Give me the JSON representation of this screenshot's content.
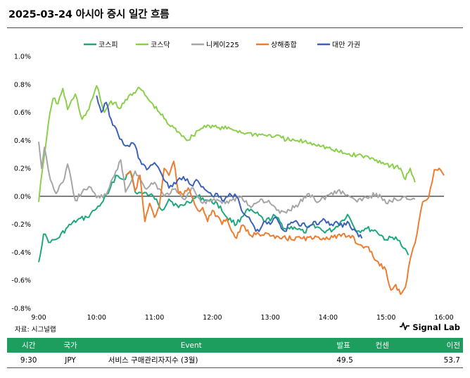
{
  "header": {
    "title": "2025-03-24 아시아 증시 일간 흐름"
  },
  "footer": {
    "source": "자료: 시그널랩",
    "brand": "Signal Lab",
    "brand_icon": "signal-pulse-icon"
  },
  "colors": {
    "kospi": "#1fa87e",
    "kosdaq": "#8ccf4d",
    "nikkei": "#a6a6a6",
    "shanghai": "#ed7d31",
    "taiwan": "#3a62b8",
    "table_header_bg": "#1e9e5e"
  },
  "chart_data": {
    "type": "line",
    "title": "",
    "xlabel": "",
    "ylabel": "",
    "x_ticks": [
      "9:00",
      "10:00",
      "11:00",
      "12:00",
      "13:00",
      "14:00",
      "15:00",
      "16:00"
    ],
    "y_ticks": [
      "1.0%",
      "0.8%",
      "0.6%",
      "0.4%",
      "0.2%",
      "0.0%",
      "-0.2%",
      "-0.4%",
      "-0.6%",
      "-0.8%"
    ],
    "xlim": [
      "9:00",
      "16:00"
    ],
    "ylim": [
      -0.8,
      1.0
    ],
    "grid": false,
    "legend_position": "top",
    "series": [
      {
        "name": "코스피",
        "color_key": "kospi",
        "points": [
          [
            "9:00",
            -0.47
          ],
          [
            "9:05",
            -0.27
          ],
          [
            "9:12",
            -0.33
          ],
          [
            "9:20",
            -0.3
          ],
          [
            "9:30",
            -0.22
          ],
          [
            "9:40",
            -0.17
          ],
          [
            "9:50",
            -0.15
          ],
          [
            "9:58",
            -0.1
          ],
          [
            "10:05",
            -0.05
          ],
          [
            "10:12",
            0.02
          ],
          [
            "10:20",
            0.15
          ],
          [
            "10:28",
            0.12
          ],
          [
            "10:35",
            0.18
          ],
          [
            "10:40",
            0.03
          ],
          [
            "10:48",
            0.02
          ],
          [
            "10:55",
            0.01
          ],
          [
            "11:02",
            -0.02
          ],
          [
            "11:08",
            -0.1
          ],
          [
            "11:15",
            -0.02
          ],
          [
            "11:25",
            -0.08
          ],
          [
            "11:35",
            -0.04
          ],
          [
            "11:45",
            0.0
          ],
          [
            "11:55",
            -0.03
          ],
          [
            "12:05",
            -0.05
          ],
          [
            "12:15",
            -0.15
          ],
          [
            "12:25",
            -0.2
          ],
          [
            "12:35",
            -0.1
          ],
          [
            "12:45",
            -0.12
          ],
          [
            "12:55",
            -0.18
          ],
          [
            "13:05",
            -0.14
          ],
          [
            "13:15",
            -0.23
          ],
          [
            "13:25",
            -0.22
          ],
          [
            "13:35",
            -0.26
          ],
          [
            "13:45",
            -0.2
          ],
          [
            "13:55",
            -0.25
          ],
          [
            "14:05",
            -0.24
          ],
          [
            "14:15",
            -0.17
          ],
          [
            "14:20",
            -0.13
          ],
          [
            "14:30",
            -0.25
          ],
          [
            "14:40",
            -0.23
          ],
          [
            "14:50",
            -0.25
          ],
          [
            "15:00",
            -0.31
          ],
          [
            "15:10",
            -0.29
          ],
          [
            "15:18",
            -0.37
          ],
          [
            "15:23",
            -0.42
          ]
        ]
      },
      {
        "name": "코스닥",
        "color_key": "kosdaq",
        "points": [
          [
            "9:00",
            -0.04
          ],
          [
            "9:04",
            0.2
          ],
          [
            "9:10",
            0.52
          ],
          [
            "9:15",
            0.7
          ],
          [
            "9:20",
            0.66
          ],
          [
            "9:25",
            0.77
          ],
          [
            "9:30",
            0.62
          ],
          [
            "9:38",
            0.73
          ],
          [
            "9:45",
            0.55
          ],
          [
            "9:52",
            0.62
          ],
          [
            "10:00",
            0.79
          ],
          [
            "10:08",
            0.6
          ],
          [
            "10:15",
            0.68
          ],
          [
            "10:25",
            0.63
          ],
          [
            "10:35",
            0.73
          ],
          [
            "10:45",
            0.77
          ],
          [
            "10:55",
            0.68
          ],
          [
            "11:05",
            0.6
          ],
          [
            "11:15",
            0.51
          ],
          [
            "11:25",
            0.46
          ],
          [
            "11:35",
            0.4
          ],
          [
            "11:45",
            0.47
          ],
          [
            "11:55",
            0.51
          ],
          [
            "12:05",
            0.49
          ],
          [
            "12:20",
            0.48
          ],
          [
            "12:35",
            0.45
          ],
          [
            "12:50",
            0.44
          ],
          [
            "13:05",
            0.43
          ],
          [
            "13:20",
            0.4
          ],
          [
            "13:35",
            0.39
          ],
          [
            "13:50",
            0.37
          ],
          [
            "14:05",
            0.33
          ],
          [
            "14:20",
            0.3
          ],
          [
            "14:35",
            0.29
          ],
          [
            "14:50",
            0.26
          ],
          [
            "15:05",
            0.22
          ],
          [
            "15:15",
            0.2
          ],
          [
            "15:20",
            0.12
          ],
          [
            "15:25",
            0.2
          ],
          [
            "15:30",
            0.1
          ]
        ]
      },
      {
        "name": "니케이225",
        "color_key": "nikkei",
        "points": [
          [
            "9:00",
            0.39
          ],
          [
            "9:03",
            0.2
          ],
          [
            "9:06",
            0.35
          ],
          [
            "9:12",
            0.12
          ],
          [
            "9:18",
            0.02
          ],
          [
            "9:25",
            0.1
          ],
          [
            "9:30",
            0.23
          ],
          [
            "9:38",
            -0.03
          ],
          [
            "9:45",
            0.03
          ],
          [
            "9:52",
            0.07
          ],
          [
            "10:00",
            -0.01
          ],
          [
            "10:10",
            0.01
          ],
          [
            "10:20",
            0.18
          ],
          [
            "10:25",
            0.26
          ],
          [
            "10:30",
            0.03
          ],
          [
            "10:40",
            0.18
          ],
          [
            "10:50",
            0.06
          ],
          [
            "11:00",
            0.1
          ],
          [
            "11:10",
            0.0
          ],
          [
            "11:20",
            0.05
          ],
          [
            "11:30",
            -0.02
          ],
          [
            "11:40",
            0.06
          ],
          [
            "11:50",
            -0.05
          ],
          [
            "12:00",
            -0.03
          ],
          [
            "12:10",
            -0.05
          ],
          [
            "12:20",
            -0.03
          ],
          [
            "12:30",
            0.0
          ],
          [
            "12:40",
            -0.08
          ],
          [
            "12:50",
            -0.02
          ],
          [
            "13:00",
            -0.05
          ],
          [
            "13:10",
            -0.12
          ],
          [
            "13:20",
            -0.1
          ],
          [
            "13:30",
            -0.05
          ],
          [
            "13:40",
            0.02
          ],
          [
            "13:50",
            -0.04
          ],
          [
            "14:00",
            0.01
          ],
          [
            "14:10",
            0.04
          ],
          [
            "14:20",
            0.01
          ],
          [
            "14:30",
            -0.04
          ],
          [
            "14:40",
            -0.01
          ],
          [
            "14:50",
            0.02
          ],
          [
            "15:00",
            -0.05
          ],
          [
            "15:10",
            -0.02
          ],
          [
            "15:20",
            0.0
          ],
          [
            "15:30",
            -0.02
          ]
        ]
      },
      {
        "name": "상해종합",
        "color_key": "shanghai",
        "points": [
          [
            "10:30",
            0.15
          ],
          [
            "10:35",
            0.18
          ],
          [
            "10:40",
            0.04
          ],
          [
            "10:45",
            0.15
          ],
          [
            "10:50",
            -0.18
          ],
          [
            "10:55",
            -0.05
          ],
          [
            "11:00",
            -0.15
          ],
          [
            "11:05",
            -0.07
          ],
          [
            "11:10",
            0.2
          ],
          [
            "11:15",
            0.15
          ],
          [
            "11:20",
            0.25
          ],
          [
            "11:25",
            0.02
          ],
          [
            "11:30",
            0.01
          ],
          [
            "11:35",
            0.06
          ],
          [
            "11:40",
            -0.02
          ],
          [
            "11:45",
            -0.1
          ],
          [
            "11:50",
            -0.08
          ],
          [
            "11:55",
            -0.18
          ],
          [
            "12:00",
            -0.1
          ],
          [
            "12:05",
            -0.14
          ],
          [
            "12:10",
            -0.2
          ],
          [
            "12:15",
            -0.16
          ],
          [
            "12:20",
            -0.25
          ],
          [
            "12:25",
            -0.3
          ],
          [
            "12:30",
            -0.21
          ],
          [
            "12:40",
            -0.28
          ],
          [
            "12:55",
            -0.26
          ],
          [
            "13:05",
            -0.3
          ],
          [
            "13:45",
            -0.3
          ],
          [
            "14:25",
            -0.28
          ],
          [
            "14:30",
            -0.34
          ],
          [
            "14:40",
            -0.36
          ],
          [
            "14:50",
            -0.46
          ],
          [
            "15:00",
            -0.53
          ],
          [
            "15:05",
            -0.67
          ],
          [
            "15:10",
            -0.63
          ],
          [
            "15:15",
            -0.7
          ],
          [
            "15:20",
            -0.65
          ],
          [
            "15:25",
            -0.45
          ],
          [
            "15:28",
            -0.37
          ],
          [
            "15:32",
            -0.27
          ],
          [
            "15:38",
            -0.04
          ],
          [
            "15:44",
            -0.01
          ],
          [
            "15:50",
            0.19
          ],
          [
            "15:55",
            0.2
          ],
          [
            "16:00",
            0.15
          ]
        ]
      },
      {
        "name": "대만 가권",
        "color_key": "taiwan",
        "points": [
          [
            "10:00",
            0.72
          ],
          [
            "10:05",
            0.6
          ],
          [
            "10:10",
            0.67
          ],
          [
            "10:15",
            0.55
          ],
          [
            "10:22",
            0.45
          ],
          [
            "10:30",
            0.36
          ],
          [
            "10:38",
            0.38
          ],
          [
            "10:45",
            0.26
          ],
          [
            "10:52",
            0.19
          ],
          [
            "11:00",
            0.24
          ],
          [
            "11:08",
            0.15
          ],
          [
            "11:15",
            0.06
          ],
          [
            "11:22",
            0.09
          ],
          [
            "11:30",
            0.14
          ],
          [
            "11:38",
            0.08
          ],
          [
            "11:45",
            0.11
          ],
          [
            "11:52",
            0.05
          ],
          [
            "12:00",
            0.0
          ],
          [
            "12:05",
            0.02
          ],
          [
            "12:10",
            -0.03
          ],
          [
            "12:18",
            0.02
          ],
          [
            "12:25",
            0.0
          ],
          [
            "12:32",
            -0.12
          ],
          [
            "12:40",
            -0.18
          ],
          [
            "12:45",
            -0.25
          ],
          [
            "12:50",
            -0.23
          ],
          [
            "12:55",
            -0.18
          ],
          [
            "13:00",
            -0.2
          ],
          [
            "13:05",
            -0.15
          ],
          [
            "13:10",
            -0.2
          ],
          [
            "13:15",
            -0.25
          ],
          [
            "13:20",
            -0.2
          ],
          [
            "13:25",
            -0.18
          ],
          [
            "13:30",
            -0.21
          ],
          [
            "13:35",
            -0.19
          ],
          [
            "13:40",
            -0.22
          ],
          [
            "13:45",
            -0.18
          ],
          [
            "13:50",
            -0.2
          ],
          [
            "13:55",
            -0.16
          ],
          [
            "14:00",
            -0.18
          ],
          [
            "14:05",
            -0.21
          ],
          [
            "14:10",
            -0.19
          ],
          [
            "14:15",
            -0.22
          ],
          [
            "14:20",
            -0.18
          ],
          [
            "14:25",
            -0.24
          ],
          [
            "14:30",
            -0.26
          ],
          [
            "14:35",
            -0.3
          ]
        ]
      }
    ]
  },
  "events_table": {
    "headers": {
      "time": "시간",
      "country": "국가",
      "event": "Event",
      "actual": "발표",
      "forecast": "컨센",
      "previous": "이전"
    },
    "rows": [
      {
        "time": "9:30",
        "country": "JPY",
        "event": "서비스 구매관리자지수 (3월)",
        "actual": "49.5",
        "forecast": "",
        "previous": "53.7"
      }
    ]
  }
}
